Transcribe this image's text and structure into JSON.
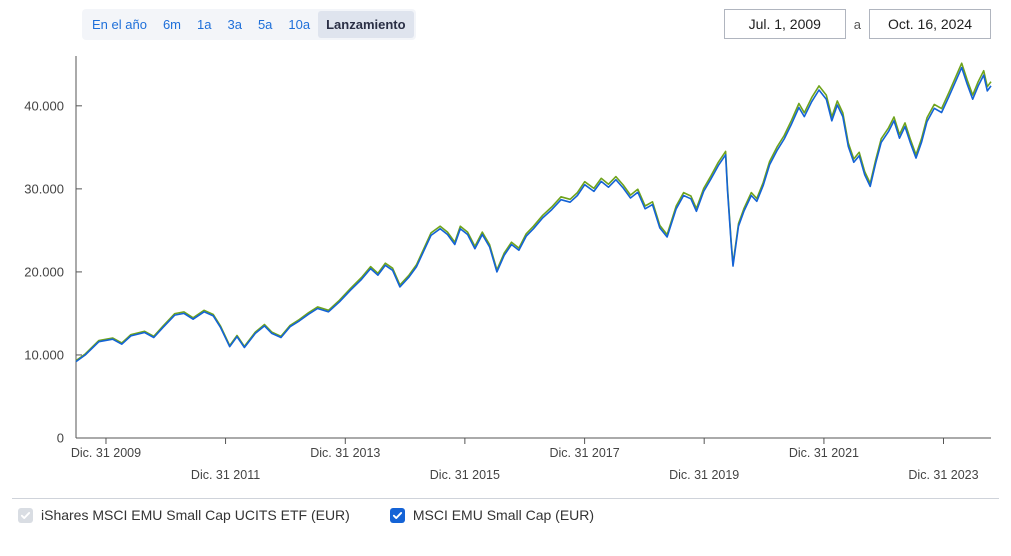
{
  "controls": {
    "ranges": [
      {
        "label": "En el año",
        "active": false
      },
      {
        "label": "6m",
        "active": false
      },
      {
        "label": "1a",
        "active": false
      },
      {
        "label": "3a",
        "active": false
      },
      {
        "label": "5a",
        "active": false
      },
      {
        "label": "10a",
        "active": false
      },
      {
        "label": "Lanzamiento",
        "active": true
      }
    ],
    "date_from": "Jul. 1, 2009",
    "date_sep": "a",
    "date_to": "Oct. 16, 2024"
  },
  "chart": {
    "type": "line",
    "background_color": "#ffffff",
    "axis_color": "#555555",
    "tick_color": "#555555",
    "label_color": "#444444",
    "label_fontsize": 13,
    "ylim": [
      0,
      46000
    ],
    "yticks": [
      {
        "value": 0,
        "label": "0"
      },
      {
        "value": 10000,
        "label": "10.000"
      },
      {
        "value": 20000,
        "label": "20.000"
      },
      {
        "value": 30000,
        "label": "30.000"
      },
      {
        "value": 40000,
        "label": "40.000"
      }
    ],
    "xlim": [
      "2009-07-01",
      "2024-10-16"
    ],
    "xticks": [
      {
        "date": "2009-12-31",
        "label": "Dic. 31 2009",
        "row": 0
      },
      {
        "date": "2011-12-31",
        "label": "Dic. 31 2011",
        "row": 1
      },
      {
        "date": "2013-12-31",
        "label": "Dic. 31 2013",
        "row": 0
      },
      {
        "date": "2015-12-31",
        "label": "Dic. 31 2015",
        "row": 1
      },
      {
        "date": "2017-12-31",
        "label": "Dic. 31 2017",
        "row": 0
      },
      {
        "date": "2019-12-31",
        "label": "Dic. 31 2019",
        "row": 1
      },
      {
        "date": "2021-12-31",
        "label": "Dic. 31 2021",
        "row": 0
      },
      {
        "date": "2023-12-31",
        "label": "Dic. 31 2023",
        "row": 1
      }
    ],
    "series": [
      {
        "id": "etf",
        "name": "iShares MSCI EMU Small Cap UCITS ETF (EUR)",
        "color": "#6fa31c",
        "line_width": 1.6,
        "legend_checkbox_bg": "#d9dde3",
        "legend_checkbox_check": "#ffffff",
        "y_offset_factor": 1.012
      },
      {
        "id": "benchmark",
        "name": "MSCI EMU Small Cap (EUR)",
        "color": "#1463d6",
        "line_width": 1.6,
        "legend_checkbox_bg": "#1463d6",
        "legend_checkbox_check": "#ffffff",
        "y_offset_factor": 1.0
      }
    ],
    "base_points": [
      {
        "t": 0.0,
        "v": 9200
      },
      {
        "t": 0.01,
        "v": 10000
      },
      {
        "t": 0.025,
        "v": 11600
      },
      {
        "t": 0.04,
        "v": 11900
      },
      {
        "t": 0.05,
        "v": 11300
      },
      {
        "t": 0.06,
        "v": 12300
      },
      {
        "t": 0.075,
        "v": 12700
      },
      {
        "t": 0.085,
        "v": 12100
      },
      {
        "t": 0.095,
        "v": 13300
      },
      {
        "t": 0.108,
        "v": 14800
      },
      {
        "t": 0.118,
        "v": 15000
      },
      {
        "t": 0.128,
        "v": 14300
      },
      {
        "t": 0.14,
        "v": 15200
      },
      {
        "t": 0.15,
        "v": 14700
      },
      {
        "t": 0.158,
        "v": 13300
      },
      {
        "t": 0.168,
        "v": 11000
      },
      {
        "t": 0.176,
        "v": 12200
      },
      {
        "t": 0.184,
        "v": 10900
      },
      {
        "t": 0.196,
        "v": 12600
      },
      {
        "t": 0.206,
        "v": 13500
      },
      {
        "t": 0.214,
        "v": 12600
      },
      {
        "t": 0.224,
        "v": 12100
      },
      {
        "t": 0.234,
        "v": 13400
      },
      {
        "t": 0.244,
        "v": 14100
      },
      {
        "t": 0.254,
        "v": 14900
      },
      {
        "t": 0.264,
        "v": 15600
      },
      {
        "t": 0.276,
        "v": 15200
      },
      {
        "t": 0.288,
        "v": 16400
      },
      {
        "t": 0.3,
        "v": 17800
      },
      {
        "t": 0.312,
        "v": 19100
      },
      {
        "t": 0.322,
        "v": 20400
      },
      {
        "t": 0.33,
        "v": 19600
      },
      {
        "t": 0.338,
        "v": 20800
      },
      {
        "t": 0.346,
        "v": 20200
      },
      {
        "t": 0.354,
        "v": 18200
      },
      {
        "t": 0.364,
        "v": 19400
      },
      {
        "t": 0.372,
        "v": 20600
      },
      {
        "t": 0.38,
        "v": 22500
      },
      {
        "t": 0.388,
        "v": 24400
      },
      {
        "t": 0.398,
        "v": 25200
      },
      {
        "t": 0.406,
        "v": 24500
      },
      {
        "t": 0.414,
        "v": 23300
      },
      {
        "t": 0.42,
        "v": 25200
      },
      {
        "t": 0.428,
        "v": 24500
      },
      {
        "t": 0.436,
        "v": 22800
      },
      {
        "t": 0.444,
        "v": 24500
      },
      {
        "t": 0.452,
        "v": 23000
      },
      {
        "t": 0.46,
        "v": 20000
      },
      {
        "t": 0.468,
        "v": 22000
      },
      {
        "t": 0.476,
        "v": 23300
      },
      {
        "t": 0.484,
        "v": 22600
      },
      {
        "t": 0.492,
        "v": 24300
      },
      {
        "t": 0.5,
        "v": 25200
      },
      {
        "t": 0.51,
        "v": 26500
      },
      {
        "t": 0.52,
        "v": 27500
      },
      {
        "t": 0.53,
        "v": 28700
      },
      {
        "t": 0.54,
        "v": 28400
      },
      {
        "t": 0.548,
        "v": 29200
      },
      {
        "t": 0.556,
        "v": 30500
      },
      {
        "t": 0.566,
        "v": 29700
      },
      {
        "t": 0.574,
        "v": 30900
      },
      {
        "t": 0.582,
        "v": 30200
      },
      {
        "t": 0.59,
        "v": 31100
      },
      {
        "t": 0.598,
        "v": 30100
      },
      {
        "t": 0.606,
        "v": 28900
      },
      {
        "t": 0.614,
        "v": 29600
      },
      {
        "t": 0.622,
        "v": 27600
      },
      {
        "t": 0.63,
        "v": 28100
      },
      {
        "t": 0.638,
        "v": 25300
      },
      {
        "t": 0.646,
        "v": 24200
      },
      {
        "t": 0.656,
        "v": 27600
      },
      {
        "t": 0.664,
        "v": 29200
      },
      {
        "t": 0.672,
        "v": 28800
      },
      {
        "t": 0.678,
        "v": 27300
      },
      {
        "t": 0.686,
        "v": 29700
      },
      {
        "t": 0.694,
        "v": 31200
      },
      {
        "t": 0.702,
        "v": 32800
      },
      {
        "t": 0.71,
        "v": 34100
      },
      {
        "t": 0.712,
        "v": 29800
      },
      {
        "t": 0.716,
        "v": 23500
      },
      {
        "t": 0.718,
        "v": 20700
      },
      {
        "t": 0.724,
        "v": 25500
      },
      {
        "t": 0.73,
        "v": 27300
      },
      {
        "t": 0.738,
        "v": 29200
      },
      {
        "t": 0.744,
        "v": 28500
      },
      {
        "t": 0.751,
        "v": 30400
      },
      {
        "t": 0.758,
        "v": 32900
      },
      {
        "t": 0.766,
        "v": 34600
      },
      {
        "t": 0.774,
        "v": 36000
      },
      {
        "t": 0.782,
        "v": 37800
      },
      {
        "t": 0.79,
        "v": 39800
      },
      {
        "t": 0.796,
        "v": 38700
      },
      {
        "t": 0.804,
        "v": 40500
      },
      {
        "t": 0.812,
        "v": 41900
      },
      {
        "t": 0.82,
        "v": 40800
      },
      {
        "t": 0.826,
        "v": 38200
      },
      {
        "t": 0.832,
        "v": 40100
      },
      {
        "t": 0.838,
        "v": 38700
      },
      {
        "t": 0.844,
        "v": 35100
      },
      {
        "t": 0.85,
        "v": 33200
      },
      {
        "t": 0.856,
        "v": 34000
      },
      {
        "t": 0.862,
        "v": 31700
      },
      {
        "t": 0.868,
        "v": 30300
      },
      {
        "t": 0.874,
        "v": 33100
      },
      {
        "t": 0.88,
        "v": 35600
      },
      {
        "t": 0.888,
        "v": 36900
      },
      {
        "t": 0.894,
        "v": 38200
      },
      {
        "t": 0.9,
        "v": 36100
      },
      {
        "t": 0.906,
        "v": 37500
      },
      {
        "t": 0.912,
        "v": 35500
      },
      {
        "t": 0.918,
        "v": 33700
      },
      {
        "t": 0.924,
        "v": 35600
      },
      {
        "t": 0.93,
        "v": 38100
      },
      {
        "t": 0.938,
        "v": 39700
      },
      {
        "t": 0.946,
        "v": 39200
      },
      {
        "t": 0.954,
        "v": 41100
      },
      {
        "t": 0.962,
        "v": 43100
      },
      {
        "t": 0.968,
        "v": 44600
      },
      {
        "t": 0.974,
        "v": 42600
      },
      {
        "t": 0.98,
        "v": 40800
      },
      {
        "t": 0.986,
        "v": 42400
      },
      {
        "t": 0.992,
        "v": 43700
      },
      {
        "t": 0.996,
        "v": 41800
      },
      {
        "t": 1.0,
        "v": 42400
      }
    ]
  }
}
